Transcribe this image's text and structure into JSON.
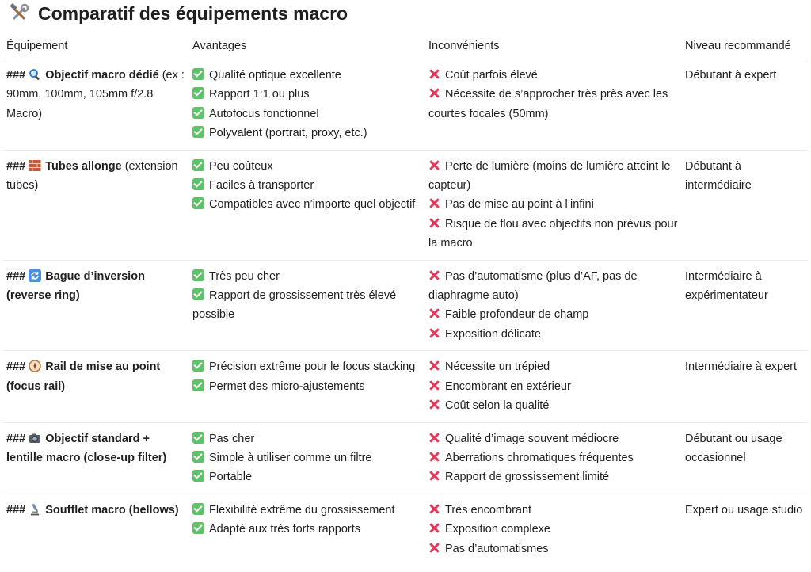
{
  "page_title": "Comparatif des équipements macro",
  "headers": {
    "equipment": "Équipement",
    "advantages": "Avantages",
    "disadvantages": "Inconvénients",
    "level": "Niveau recommandé"
  },
  "rows": [
    {
      "prefix": "###",
      "icon": "magnifier-icon",
      "name": "Objectif macro dédié",
      "subtitle": "(ex : 90mm, 100mm, 105mm f/2.8 Macro)",
      "advantages": [
        "Qualité optique excellente",
        "Rapport 1:1 ou plus",
        "Autofocus fonctionnel",
        "Polyvalent (portrait, proxy, etc.)"
      ],
      "disadvantages": [
        "Coût parfois élevé",
        "Nécessite de s’approcher très près avec les courtes focales (50mm)"
      ],
      "level": "Débutant à expert"
    },
    {
      "prefix": "###",
      "icon": "bricks-icon",
      "name": "Tubes allonge",
      "subtitle": "(extension tubes)",
      "advantages": [
        "Peu coûteux",
        "Faciles à transporter",
        "Compatibles avec n’importe quel objectif"
      ],
      "disadvantages": [
        "Perte de lumière (moins de lumière atteint le capteur)",
        "Pas de mise au point à l’infini",
        "Risque de flou avec objectifs non prévus pour la macro"
      ],
      "level": "Débutant à intermédiaire"
    },
    {
      "prefix": "###",
      "icon": "arrows-cycle-icon",
      "name": "Bague d’inversion",
      "subtitle": "(reverse ring)",
      "advantages": [
        "Très peu cher",
        "Rapport de grossissement très élevé possible"
      ],
      "disadvantages": [
        "Pas d’automatisme (plus d’AF, pas de diaphragme auto)",
        "Faible profondeur de champ",
        "Exposition délicate"
      ],
      "level": "Intermédiaire à expérimentateur"
    },
    {
      "prefix": "###",
      "icon": "compass-icon",
      "name": "Rail de mise au point",
      "subtitle": "(focus rail)",
      "advantages": [
        "Précision extrême pour le focus stacking",
        "Permet des micro-ajustements"
      ],
      "disadvantages": [
        "Nécessite un trépied",
        "Encombrant en extérieur",
        "Coût selon la qualité"
      ],
      "level": "Intermédiaire à expert"
    },
    {
      "prefix": "###",
      "icon": "camera-icon",
      "name": "Objectif standard + lentille macro (close-up filter)",
      "subtitle": "",
      "advantages": [
        "Pas cher",
        "Simple à utiliser comme un filtre",
        "Portable"
      ],
      "disadvantages": [
        "Qualité d’image souvent médiocre",
        "Aberrations chromatiques fréquentes",
        "Rapport de grossissement limité"
      ],
      "level": "Débutant ou usage occasionnel"
    },
    {
      "prefix": "###",
      "icon": "microscope-icon",
      "name": "Soufflet macro",
      "subtitle": "(bellows)",
      "advantages": [
        "Flexibilité extrême du grossissement",
        "Adapté aux très forts rapports"
      ],
      "disadvantages": [
        "Très encombrant",
        "Exposition complexe",
        "Pas d’automatismes"
      ],
      "level": "Expert ou usage studio"
    }
  ],
  "colors": {
    "check": "#5cc466",
    "cross": "#e5365b",
    "border": "#e9e9e9"
  }
}
